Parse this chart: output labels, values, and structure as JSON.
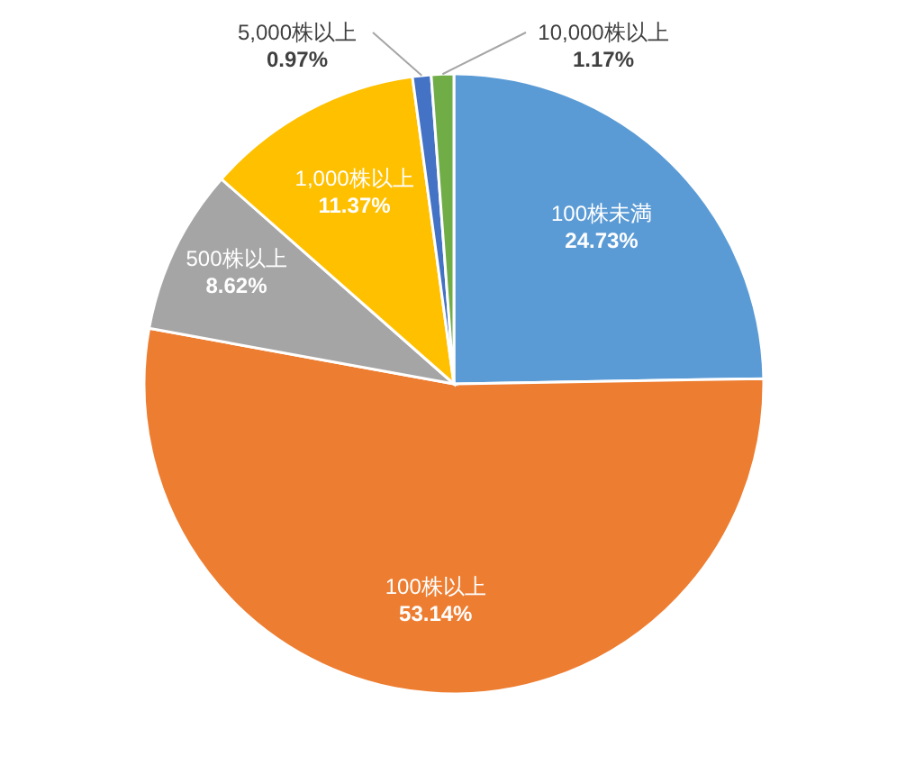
{
  "chart_data": {
    "type": "pie",
    "categories": [
      "100株未満",
      "100株以上",
      "500株以上",
      "1,000株以上",
      "5,000株以上",
      "10,000株以上"
    ],
    "values": [
      24.73,
      53.14,
      8.62,
      11.37,
      0.97,
      1.17
    ],
    "colors": [
      "#5b9bd5",
      "#ed7d31",
      "#a5a5a5",
      "#ffc000",
      "#4472c4",
      "#70ad47"
    ],
    "value_labels": [
      "24.73%",
      "53.14%",
      "8.62%",
      "11.37%",
      "0.97%",
      "1.17%"
    ],
    "legend": false
  }
}
